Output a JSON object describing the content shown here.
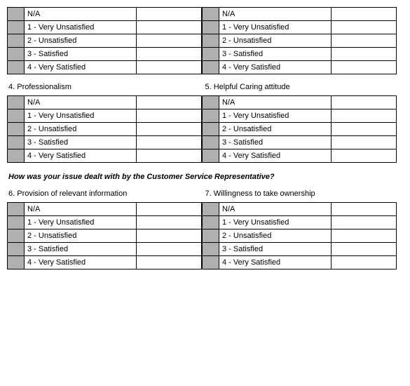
{
  "rating_options_col1": [
    "N/A",
    "1 - Very Unsatisfied",
    "2 - Unsatisfied",
    "3 - Satisfied",
    "4 - Very Satisfied"
  ],
  "rating_options_col2": [
    "N/A",
    "1 - Very Unsatisfied",
    "2 - Unsatisfied",
    "3 - Satisfied",
    "4 - Very Satisfied"
  ],
  "questions": {
    "q4": "4. Professionalism",
    "q5": "5. Helpful Caring attitude",
    "q6": "6. Provision of relevant information",
    "q7": "7. Willingness to take ownership"
  },
  "section_heading": "How was your issue dealt with by the Customer Service Representative?",
  "colors": {
    "radio_bg": "#b0b0b0",
    "border": "#000000",
    "background": "#ffffff"
  }
}
